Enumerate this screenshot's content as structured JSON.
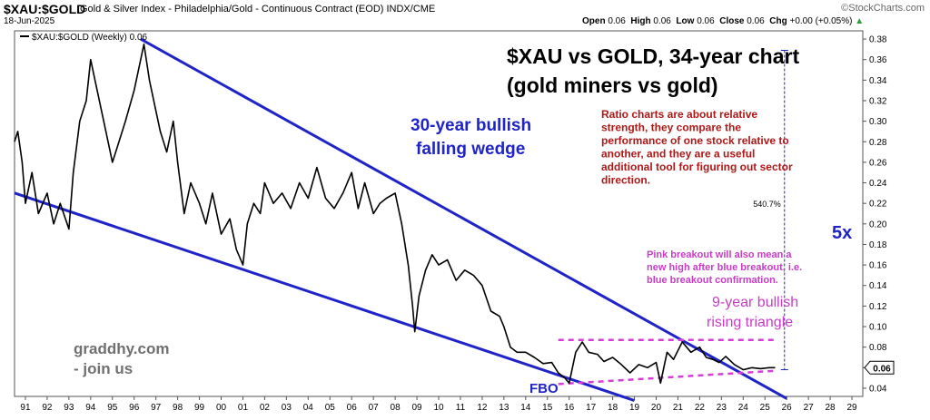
{
  "header": {
    "symbol": "$XAU:$GOLD",
    "description": "Gold & Silver Index - Philadelphia/Gold - Continuous Contract (EOD) INDX/CME",
    "date": "18-Jun-2025",
    "ohlc": {
      "open_label": "Open",
      "open": "0.06",
      "high_label": "High",
      "high": "0.06",
      "low_label": "Low",
      "low": "0.06",
      "close_label": "Close",
      "close": "0.06",
      "chg_label": "Chg",
      "chg": "+0.00 (+0.05%)"
    },
    "watermark": "©StockCharts.com"
  },
  "legend": {
    "label": "$XAU:$GOLD (Weekly) 0.06"
  },
  "annotations": {
    "title_line1": "$XAU vs GOLD, 34-year chart",
    "title_line2": "(gold miners vs gold)",
    "wedge_line1": "30-year bullish",
    "wedge_line2": "falling wedge",
    "ratio_note": [
      "Ratio charts are about relative",
      "strength, they compare the",
      "performance of one stock relative to",
      "another, and they are a useful",
      "additional tool for figuring out sector",
      "direction."
    ],
    "pink_note": [
      "Pink breakout will also mean a",
      "new high after blue breakout, i.e.",
      "blue breakout confirmation."
    ],
    "triangle_line1": "9-year bullish",
    "triangle_line2": "rising triangle",
    "author_line1": "graddhy.com",
    "author_line2": "- join us",
    "fbo": "FBO",
    "pct": "540.7%",
    "multiple": "5x",
    "last_value": "0.06"
  },
  "colors": {
    "price": "#000000",
    "trendline": "#1f24c8",
    "pink": "#d63cd6",
    "ratio_note": "#b01818",
    "pink_note": "#c83cc8",
    "measure": "#1f24c8"
  },
  "chart_data": {
    "type": "line",
    "title": "$XAU:$GOLD (Weekly)",
    "series": [
      {
        "name": "$XAU:$GOLD (Weekly)",
        "x": [
          1990.5,
          1990.65,
          1990.85,
          1991.0,
          1991.3,
          1991.6,
          1992.0,
          1992.3,
          1992.6,
          1993.0,
          1993.2,
          1993.5,
          1993.8,
          1994.0,
          1994.3,
          1994.6,
          1995.0,
          1995.3,
          1995.6,
          1996.0,
          1996.3,
          1996.45,
          1996.7,
          1997.0,
          1997.2,
          1997.5,
          1997.8,
          1998.0,
          1998.3,
          1998.6,
          1999.0,
          1999.3,
          1999.6,
          2000.0,
          2000.4,
          2000.7,
          2001.0,
          2001.2,
          2001.5,
          2001.8,
          2002.0,
          2002.4,
          2002.8,
          2003.2,
          2003.6,
          2004.0,
          2004.4,
          2004.8,
          2005.2,
          2005.6,
          2006.0,
          2006.3,
          2006.6,
          2007.0,
          2007.3,
          2007.6,
          2008.0,
          2008.3,
          2008.6,
          2008.8,
          2008.9,
          2009.1,
          2009.4,
          2009.7,
          2010.0,
          2010.4,
          2010.8,
          2011.2,
          2011.6,
          2012.0,
          2012.4,
          2012.8,
          2013.0,
          2013.3,
          2013.6,
          2014.0,
          2014.4,
          2014.8,
          2015.2,
          2015.5,
          2015.8,
          2016.0,
          2016.3,
          2016.6,
          2016.9,
          2017.3,
          2017.6,
          2018.0,
          2018.4,
          2018.8,
          2019.2,
          2019.6,
          2020.0,
          2020.2,
          2020.5,
          2020.8,
          2021.2,
          2021.6,
          2022.0,
          2022.3,
          2022.6,
          2022.9,
          2023.2,
          2023.6,
          2024.0,
          2024.4,
          2024.8,
          2025.2,
          2025.47
        ],
        "y": [
          0.28,
          0.29,
          0.26,
          0.22,
          0.25,
          0.21,
          0.23,
          0.2,
          0.22,
          0.195,
          0.25,
          0.3,
          0.32,
          0.36,
          0.33,
          0.3,
          0.26,
          0.28,
          0.3,
          0.33,
          0.36,
          0.375,
          0.34,
          0.31,
          0.29,
          0.27,
          0.3,
          0.26,
          0.21,
          0.24,
          0.22,
          0.2,
          0.23,
          0.19,
          0.205,
          0.175,
          0.16,
          0.2,
          0.22,
          0.21,
          0.24,
          0.22,
          0.23,
          0.215,
          0.24,
          0.225,
          0.255,
          0.225,
          0.215,
          0.23,
          0.25,
          0.215,
          0.24,
          0.21,
          0.22,
          0.225,
          0.23,
          0.2,
          0.16,
          0.12,
          0.095,
          0.13,
          0.155,
          0.17,
          0.16,
          0.165,
          0.145,
          0.155,
          0.15,
          0.14,
          0.115,
          0.11,
          0.1,
          0.08,
          0.075,
          0.075,
          0.07,
          0.064,
          0.065,
          0.055,
          0.05,
          0.045,
          0.075,
          0.085,
          0.075,
          0.073,
          0.066,
          0.07,
          0.063,
          0.055,
          0.063,
          0.06,
          0.065,
          0.045,
          0.075,
          0.068,
          0.085,
          0.075,
          0.08,
          0.07,
          0.068,
          0.065,
          0.071,
          0.063,
          0.058,
          0.06,
          0.059,
          0.06,
          0.06
        ]
      }
    ],
    "x_ticks": [
      "91",
      "92",
      "93",
      "94",
      "95",
      "96",
      "97",
      "98",
      "99",
      "00",
      "01",
      "02",
      "03",
      "04",
      "05",
      "06",
      "07",
      "08",
      "09",
      "10",
      "11",
      "12",
      "13",
      "14",
      "15",
      "16",
      "17",
      "18",
      "19",
      "20",
      "21",
      "22",
      "23",
      "24",
      "25",
      "26",
      "27",
      "28",
      "29"
    ],
    "y_ticks": [
      "0.04",
      "0.06",
      "0.08",
      "0.10",
      "0.12",
      "0.14",
      "0.16",
      "0.18",
      "0.20",
      "0.22",
      "0.24",
      "0.26",
      "0.28",
      "0.30",
      "0.32",
      "0.34",
      "0.36",
      "0.38"
    ],
    "xlim": [
      1990.5,
      2029.5
    ],
    "ylim": [
      0.032,
      0.388
    ],
    "y_axis_side": "right",
    "grid": false,
    "lines": {
      "wedge_upper": {
        "from": [
          1996.3,
          0.38
        ],
        "to": [
          2026.0,
          0.03
        ]
      },
      "wedge_lower": {
        "from": [
          1990.5,
          0.23
        ],
        "to": [
          2019.0,
          0.028
        ]
      },
      "triangle_top": {
        "from": [
          2015.5,
          0.087
        ],
        "to": [
          2025.5,
          0.087
        ]
      },
      "triangle_bottom": {
        "from": [
          2015.5,
          0.044
        ],
        "to": [
          2025.5,
          0.057
        ]
      },
      "measure": {
        "from": [
          2025.9,
          0.058
        ],
        "to": [
          2025.9,
          0.369
        ]
      }
    }
  }
}
